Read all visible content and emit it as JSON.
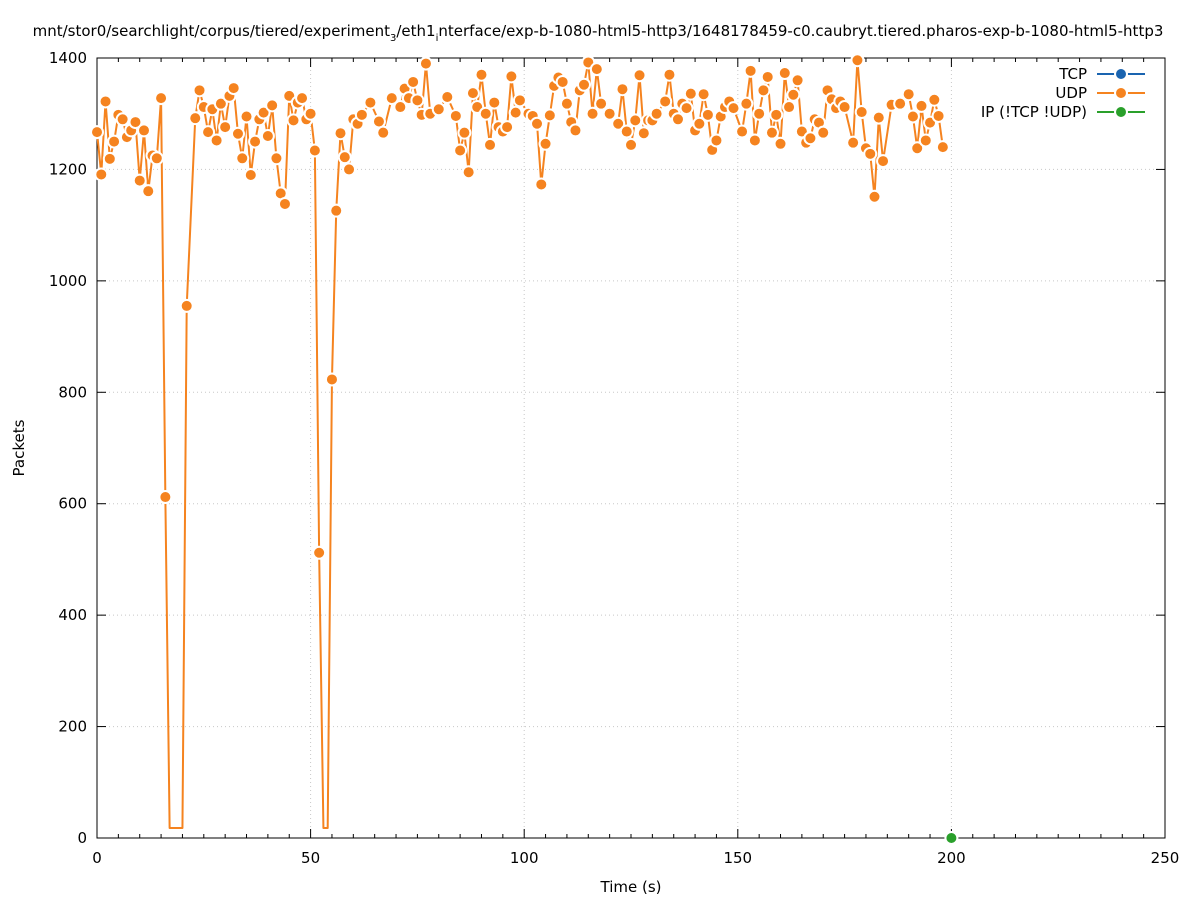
{
  "chart_data": {
    "type": "line",
    "title": "mnt/stor0/searchlight/corpus/tiered/experiment_3/eth1_interface/exp-b-1080-html5-http3/1648178459-c0.caubryt.tiered.pharos-exp-b-1080-html5-http3",
    "title_parts": {
      "a": "mnt/stor0/searchlight/corpus/tiered/experiment",
      "sub1": "3",
      "b": "/eth1",
      "sub2": "i",
      "c": "nterface/exp-b-1080-html5-http3/1648178459-c0.caubryt.tiered.pharos-exp-b-1080-html5-http3"
    },
    "xlabel": "Time (s)",
    "ylabel": "Packets",
    "xlim": [
      0,
      250
    ],
    "ylim": [
      0,
      1400
    ],
    "x_ticks": [
      0,
      50,
      100,
      150,
      200,
      250
    ],
    "y_ticks": [
      0,
      200,
      400,
      600,
      800,
      1000,
      1200,
      1400
    ],
    "x_tick_labels": [
      "0",
      "50",
      "100",
      "150",
      "200",
      "250"
    ],
    "y_tick_labels": [
      "0",
      "200",
      "400",
      "600",
      "800",
      "1000",
      "1200",
      "1400"
    ],
    "grid": true,
    "legend_position": "top-right",
    "series": [
      {
        "name": "TCP",
        "color": "#1a64b0",
        "points": []
      },
      {
        "name": "UDP",
        "color": "#f5831f",
        "points": [
          [
            0,
            1267
          ],
          [
            1,
            1191
          ],
          [
            2,
            1322
          ],
          [
            3,
            1219
          ],
          [
            4,
            1250
          ],
          [
            5,
            1298
          ],
          [
            6,
            1290
          ],
          [
            7,
            1258
          ],
          [
            8,
            1270
          ],
          [
            9,
            1285
          ],
          [
            10,
            1180
          ],
          [
            11,
            1270
          ],
          [
            12,
            1161
          ],
          [
            13,
            1225
          ],
          [
            14,
            1220
          ],
          [
            15,
            1328
          ],
          [
            16,
            612
          ],
          [
            17,
            18
          ],
          [
            20,
            18
          ],
          [
            21,
            955
          ],
          [
            23,
            1292
          ],
          [
            24,
            1342
          ],
          [
            25,
            1312
          ],
          [
            26,
            1267
          ],
          [
            27,
            1308
          ],
          [
            28,
            1252
          ],
          [
            29,
            1318
          ],
          [
            30,
            1276
          ],
          [
            31,
            1332
          ],
          [
            32,
            1346
          ],
          [
            33,
            1264
          ],
          [
            34,
            1220
          ],
          [
            35,
            1295
          ],
          [
            36,
            1190
          ],
          [
            37,
            1250
          ],
          [
            38,
            1290
          ],
          [
            39,
            1302
          ],
          [
            40,
            1260
          ],
          [
            41,
            1315
          ],
          [
            42,
            1220
          ],
          [
            43,
            1157
          ],
          [
            44,
            1138
          ],
          [
            45,
            1332
          ],
          [
            46,
            1288
          ],
          [
            47,
            1320
          ],
          [
            48,
            1328
          ],
          [
            49,
            1290
          ],
          [
            50,
            1300
          ],
          [
            51,
            1234
          ],
          [
            52,
            512
          ],
          [
            53,
            18
          ],
          [
            54,
            18
          ],
          [
            55,
            823
          ],
          [
            56,
            1126
          ],
          [
            57,
            1265
          ],
          [
            58,
            1222
          ],
          [
            59,
            1200
          ],
          [
            60,
            1290
          ],
          [
            61,
            1282
          ],
          [
            62,
            1298
          ],
          [
            64,
            1320
          ],
          [
            66,
            1286
          ],
          [
            67,
            1266
          ],
          [
            69,
            1328
          ],
          [
            71,
            1312
          ],
          [
            72,
            1345
          ],
          [
            73,
            1328
          ],
          [
            74,
            1357
          ],
          [
            75,
            1324
          ],
          [
            76,
            1298
          ],
          [
            77,
            1390
          ],
          [
            78,
            1300
          ],
          [
            80,
            1308
          ],
          [
            82,
            1330
          ],
          [
            84,
            1296
          ],
          [
            85,
            1234
          ],
          [
            86,
            1266
          ],
          [
            87,
            1195
          ],
          [
            88,
            1337
          ],
          [
            89,
            1312
          ],
          [
            90,
            1370
          ],
          [
            91,
            1300
          ],
          [
            92,
            1244
          ],
          [
            93,
            1320
          ],
          [
            94,
            1276
          ],
          [
            95,
            1268
          ],
          [
            96,
            1276
          ],
          [
            97,
            1367
          ],
          [
            98,
            1302
          ],
          [
            99,
            1324
          ],
          [
            101,
            1300
          ],
          [
            102,
            1296
          ],
          [
            103,
            1282
          ],
          [
            104,
            1173
          ],
          [
            105,
            1246
          ],
          [
            106,
            1297
          ],
          [
            107,
            1350
          ],
          [
            108,
            1365
          ],
          [
            109,
            1357
          ],
          [
            110,
            1318
          ],
          [
            111,
            1285
          ],
          [
            112,
            1270
          ],
          [
            113,
            1342
          ],
          [
            114,
            1352
          ],
          [
            115,
            1392
          ],
          [
            116,
            1300
          ],
          [
            117,
            1380
          ],
          [
            118,
            1318
          ],
          [
            120,
            1300
          ],
          [
            122,
            1282
          ],
          [
            123,
            1344
          ],
          [
            124,
            1268
          ],
          [
            125,
            1244
          ],
          [
            126,
            1288
          ],
          [
            127,
            1369
          ],
          [
            128,
            1265
          ],
          [
            129,
            1288
          ],
          [
            130,
            1288
          ],
          [
            131,
            1300
          ],
          [
            133,
            1322
          ],
          [
            134,
            1370
          ],
          [
            135,
            1300
          ],
          [
            136,
            1290
          ],
          [
            137,
            1318
          ],
          [
            138,
            1310
          ],
          [
            139,
            1336
          ],
          [
            140,
            1270
          ],
          [
            141,
            1282
          ],
          [
            142,
            1335
          ],
          [
            143,
            1298
          ],
          [
            144,
            1235
          ],
          [
            145,
            1252
          ],
          [
            146,
            1295
          ],
          [
            147,
            1312
          ],
          [
            148,
            1322
          ],
          [
            149,
            1310
          ],
          [
            151,
            1268
          ],
          [
            152,
            1318
          ],
          [
            153,
            1377
          ],
          [
            154,
            1252
          ],
          [
            155,
            1300
          ],
          [
            156,
            1342
          ],
          [
            157,
            1366
          ],
          [
            158,
            1266
          ],
          [
            159,
            1298
          ],
          [
            160,
            1246
          ],
          [
            161,
            1373
          ],
          [
            162,
            1312
          ],
          [
            163,
            1334
          ],
          [
            164,
            1360
          ],
          [
            165,
            1268
          ],
          [
            166,
            1248
          ],
          [
            167,
            1256
          ],
          [
            168,
            1290
          ],
          [
            169,
            1284
          ],
          [
            170,
            1266
          ],
          [
            171,
            1342
          ],
          [
            172,
            1326
          ],
          [
            173,
            1310
          ],
          [
            174,
            1322
          ],
          [
            175,
            1312
          ],
          [
            177,
            1248
          ],
          [
            178,
            1396
          ],
          [
            179,
            1303
          ],
          [
            180,
            1238
          ],
          [
            181,
            1228
          ],
          [
            182,
            1151
          ],
          [
            183,
            1293
          ],
          [
            184,
            1215
          ],
          [
            186,
            1316
          ],
          [
            188,
            1318
          ],
          [
            190,
            1335
          ],
          [
            191,
            1295
          ],
          [
            192,
            1238
          ],
          [
            193,
            1314
          ],
          [
            194,
            1252
          ],
          [
            195,
            1284
          ],
          [
            196,
            1325
          ],
          [
            197,
            1296
          ],
          [
            198,
            1240
          ]
        ]
      },
      {
        "name": "IP (!TCP  !UDP)",
        "color": "#2aa02b",
        "points": [
          [
            200,
            0
          ]
        ]
      }
    ]
  }
}
